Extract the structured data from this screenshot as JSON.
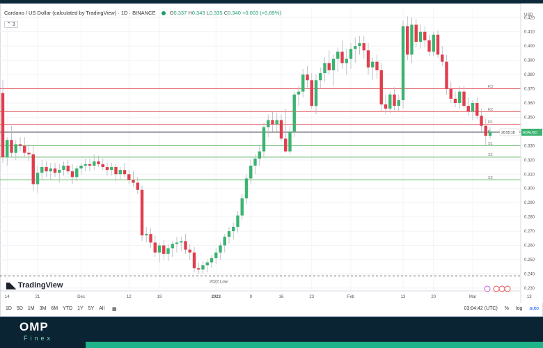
{
  "header": {
    "title": "Cardano / US Dollar (calculated by TradingView) · 1D · BINANCE",
    "o_label": "O",
    "o": "0.337",
    "h_label": "H",
    "h": "0.343",
    "l_label": "L",
    "l": "0.335",
    "c_label": "C",
    "c": "0.340",
    "change": "+0.003 (+0.89%)",
    "collapse": "⌃ 3"
  },
  "logo": {
    "text": "TradingView"
  },
  "bottom": {
    "ranges": [
      "1D",
      "5D",
      "1M",
      "3M",
      "6M",
      "YTD",
      "1Y",
      "5Y",
      "All"
    ],
    "time": "03:04:42 (UTC)",
    "percent": "%",
    "log": "log",
    "auto": "auto"
  },
  "footer": {
    "brand": "OMP",
    "sub": "Finex"
  },
  "colors": {
    "up": "#26a69a",
    "down": "#ef5350",
    "upFill": "#3cb371",
    "downFill": "#e03e4c",
    "resistance": "#e05a62",
    "support": "#4caf50",
    "current": "#1e222d",
    "pivot": "#1e222d"
  },
  "chart_data": {
    "type": "candlestick",
    "currency_label": "USD",
    "ylim": [
      0.228,
      0.426
    ],
    "y_ticks": [
      "0.420",
      "0.410",
      "0.400",
      "0.390",
      "0.380",
      "0.370",
      "0.360",
      "0.350",
      "0.340",
      "0.330",
      "0.320",
      "0.310",
      "0.300",
      "0.290",
      "0.280",
      "0.270",
      "0.260",
      "0.250",
      "0.240",
      "0.230"
    ],
    "x_ticks": [
      {
        "label": "14",
        "i": 1
      },
      {
        "label": "21",
        "i": 8
      },
      {
        "label": "Dec",
        "i": 18
      },
      {
        "label": "12",
        "i": 29
      },
      {
        "label": "19",
        "i": 36
      },
      {
        "label": "2023",
        "i": 49
      },
      {
        "label": "9",
        "i": 57
      },
      {
        "label": "16",
        "i": 64
      },
      {
        "label": "23",
        "i": 71
      },
      {
        "label": "Feb",
        "i": 80
      },
      {
        "label": "13",
        "i": 92
      },
      {
        "label": "20",
        "i": 99
      },
      {
        "label": "Mar",
        "i": 108
      },
      {
        "label": "13",
        "i": 121
      }
    ],
    "candles": [
      [
        0.367,
        0.376,
        0.318,
        0.322
      ],
      [
        0.322,
        0.336,
        0.316,
        0.334
      ],
      [
        0.334,
        0.344,
        0.322,
        0.325
      ],
      [
        0.325,
        0.334,
        0.32,
        0.331
      ],
      [
        0.331,
        0.336,
        0.326,
        0.33
      ],
      [
        0.33,
        0.336,
        0.322,
        0.325
      ],
      [
        0.325,
        0.331,
        0.319,
        0.324
      ],
      [
        0.324,
        0.33,
        0.298,
        0.303
      ],
      [
        0.303,
        0.316,
        0.297,
        0.311
      ],
      [
        0.311,
        0.32,
        0.306,
        0.315
      ],
      [
        0.315,
        0.319,
        0.308,
        0.312
      ],
      [
        0.312,
        0.318,
        0.306,
        0.314
      ],
      [
        0.314,
        0.318,
        0.308,
        0.311
      ],
      [
        0.311,
        0.317,
        0.304,
        0.313
      ],
      [
        0.313,
        0.319,
        0.309,
        0.316
      ],
      [
        0.316,
        0.32,
        0.31,
        0.312
      ],
      [
        0.312,
        0.317,
        0.303,
        0.308
      ],
      [
        0.308,
        0.316,
        0.305,
        0.314
      ],
      [
        0.314,
        0.318,
        0.31,
        0.316
      ],
      [
        0.316,
        0.321,
        0.312,
        0.317
      ],
      [
        0.317,
        0.321,
        0.312,
        0.316
      ],
      [
        0.316,
        0.324,
        0.313,
        0.319
      ],
      [
        0.319,
        0.323,
        0.315,
        0.317
      ],
      [
        0.317,
        0.321,
        0.313,
        0.315
      ],
      [
        0.315,
        0.318,
        0.309,
        0.313
      ],
      [
        0.313,
        0.318,
        0.309,
        0.315
      ],
      [
        0.315,
        0.317,
        0.305,
        0.31
      ],
      [
        0.31,
        0.315,
        0.306,
        0.313
      ],
      [
        0.313,
        0.318,
        0.308,
        0.31
      ],
      [
        0.31,
        0.313,
        0.303,
        0.306
      ],
      [
        0.306,
        0.312,
        0.301,
        0.304
      ],
      [
        0.304,
        0.308,
        0.296,
        0.299
      ],
      [
        0.299,
        0.302,
        0.263,
        0.267
      ],
      [
        0.267,
        0.273,
        0.262,
        0.268
      ],
      [
        0.268,
        0.272,
        0.258,
        0.262
      ],
      [
        0.262,
        0.267,
        0.252,
        0.255
      ],
      [
        0.255,
        0.262,
        0.248,
        0.26
      ],
      [
        0.26,
        0.264,
        0.25,
        0.254
      ],
      [
        0.254,
        0.261,
        0.249,
        0.258
      ],
      [
        0.258,
        0.263,
        0.252,
        0.261
      ],
      [
        0.261,
        0.266,
        0.255,
        0.262
      ],
      [
        0.262,
        0.266,
        0.256,
        0.263
      ],
      [
        0.263,
        0.268,
        0.254,
        0.257
      ],
      [
        0.257,
        0.261,
        0.25,
        0.255
      ],
      [
        0.255,
        0.259,
        0.241,
        0.244
      ],
      [
        0.244,
        0.248,
        0.24,
        0.243
      ],
      [
        0.243,
        0.249,
        0.24,
        0.246
      ],
      [
        0.246,
        0.25,
        0.241,
        0.248
      ],
      [
        0.248,
        0.253,
        0.244,
        0.251
      ],
      [
        0.251,
        0.258,
        0.247,
        0.255
      ],
      [
        0.255,
        0.262,
        0.25,
        0.26
      ],
      [
        0.26,
        0.268,
        0.255,
        0.266
      ],
      [
        0.266,
        0.273,
        0.261,
        0.27
      ],
      [
        0.27,
        0.276,
        0.264,
        0.273
      ],
      [
        0.273,
        0.284,
        0.269,
        0.281
      ],
      [
        0.281,
        0.296,
        0.278,
        0.293
      ],
      [
        0.293,
        0.31,
        0.289,
        0.307
      ],
      [
        0.307,
        0.32,
        0.303,
        0.316
      ],
      [
        0.316,
        0.324,
        0.31,
        0.321
      ],
      [
        0.321,
        0.33,
        0.316,
        0.326
      ],
      [
        0.326,
        0.346,
        0.322,
        0.343
      ],
      [
        0.343,
        0.352,
        0.336,
        0.348
      ],
      [
        0.348,
        0.354,
        0.34,
        0.345
      ],
      [
        0.345,
        0.353,
        0.34,
        0.348
      ],
      [
        0.348,
        0.352,
        0.333,
        0.335
      ],
      [
        0.335,
        0.356,
        0.325,
        0.326
      ],
      [
        0.326,
        0.344,
        0.324,
        0.34
      ],
      [
        0.34,
        0.368,
        0.336,
        0.366
      ],
      [
        0.366,
        0.372,
        0.358,
        0.368
      ],
      [
        0.368,
        0.384,
        0.364,
        0.38
      ],
      [
        0.38,
        0.386,
        0.371,
        0.376
      ],
      [
        0.376,
        0.381,
        0.356,
        0.358
      ],
      [
        0.358,
        0.38,
        0.352,
        0.376
      ],
      [
        0.376,
        0.385,
        0.37,
        0.381
      ],
      [
        0.381,
        0.392,
        0.375,
        0.388
      ],
      [
        0.388,
        0.397,
        0.38,
        0.383
      ],
      [
        0.383,
        0.394,
        0.372,
        0.391
      ],
      [
        0.391,
        0.399,
        0.382,
        0.396
      ],
      [
        0.396,
        0.404,
        0.384,
        0.388
      ],
      [
        0.388,
        0.398,
        0.38,
        0.391
      ],
      [
        0.391,
        0.402,
        0.384,
        0.398
      ],
      [
        0.398,
        0.406,
        0.388,
        0.4
      ],
      [
        0.4,
        0.407,
        0.394,
        0.402
      ],
      [
        0.402,
        0.407,
        0.391,
        0.397
      ],
      [
        0.397,
        0.402,
        0.38,
        0.385
      ],
      [
        0.385,
        0.392,
        0.376,
        0.389
      ],
      [
        0.389,
        0.394,
        0.377,
        0.383
      ],
      [
        0.383,
        0.388,
        0.354,
        0.359
      ],
      [
        0.359,
        0.366,
        0.352,
        0.356
      ],
      [
        0.356,
        0.368,
        0.353,
        0.366
      ],
      [
        0.366,
        0.371,
        0.355,
        0.358
      ],
      [
        0.358,
        0.366,
        0.354,
        0.362
      ],
      [
        0.362,
        0.418,
        0.356,
        0.414
      ],
      [
        0.414,
        0.421,
        0.39,
        0.394
      ],
      [
        0.394,
        0.42,
        0.388,
        0.415
      ],
      [
        0.415,
        0.419,
        0.399,
        0.403
      ],
      [
        0.403,
        0.415,
        0.398,
        0.41
      ],
      [
        0.41,
        0.414,
        0.399,
        0.404
      ],
      [
        0.404,
        0.408,
        0.393,
        0.396
      ],
      [
        0.396,
        0.41,
        0.393,
        0.408
      ],
      [
        0.408,
        0.411,
        0.392,
        0.394
      ],
      [
        0.394,
        0.4,
        0.386,
        0.389
      ],
      [
        0.389,
        0.394,
        0.366,
        0.37
      ],
      [
        0.37,
        0.375,
        0.36,
        0.363
      ],
      [
        0.363,
        0.368,
        0.357,
        0.36
      ],
      [
        0.36,
        0.372,
        0.356,
        0.368
      ],
      [
        0.368,
        0.372,
        0.356,
        0.358
      ],
      [
        0.358,
        0.364,
        0.351,
        0.354
      ],
      [
        0.354,
        0.362,
        0.348,
        0.36
      ],
      [
        0.36,
        0.364,
        0.349,
        0.351
      ],
      [
        0.351,
        0.356,
        0.34,
        0.344
      ],
      [
        0.344,
        0.349,
        0.33,
        0.337
      ],
      [
        0.337,
        0.343,
        0.335,
        0.34
      ]
    ],
    "levels": [
      {
        "label": "R3",
        "value": 0.37,
        "kind": "resistance"
      },
      {
        "label": "R2",
        "value": 0.354,
        "kind": "resistance"
      },
      {
        "label": "R1",
        "value": 0.345,
        "kind": "resistance"
      },
      {
        "label": "P",
        "value": 0.3395,
        "kind": "pivot"
      },
      {
        "label": "S1",
        "value": 0.33,
        "kind": "support"
      },
      {
        "label": "S2",
        "value": 0.322,
        "kind": "support"
      },
      {
        "label": "S3",
        "value": 0.306,
        "kind": "support"
      }
    ],
    "low_line": {
      "label": "2022 Low",
      "value": 0.2385
    },
    "price_tag": {
      "symbol": "ADAUSD",
      "price": "20:55:18"
    }
  }
}
